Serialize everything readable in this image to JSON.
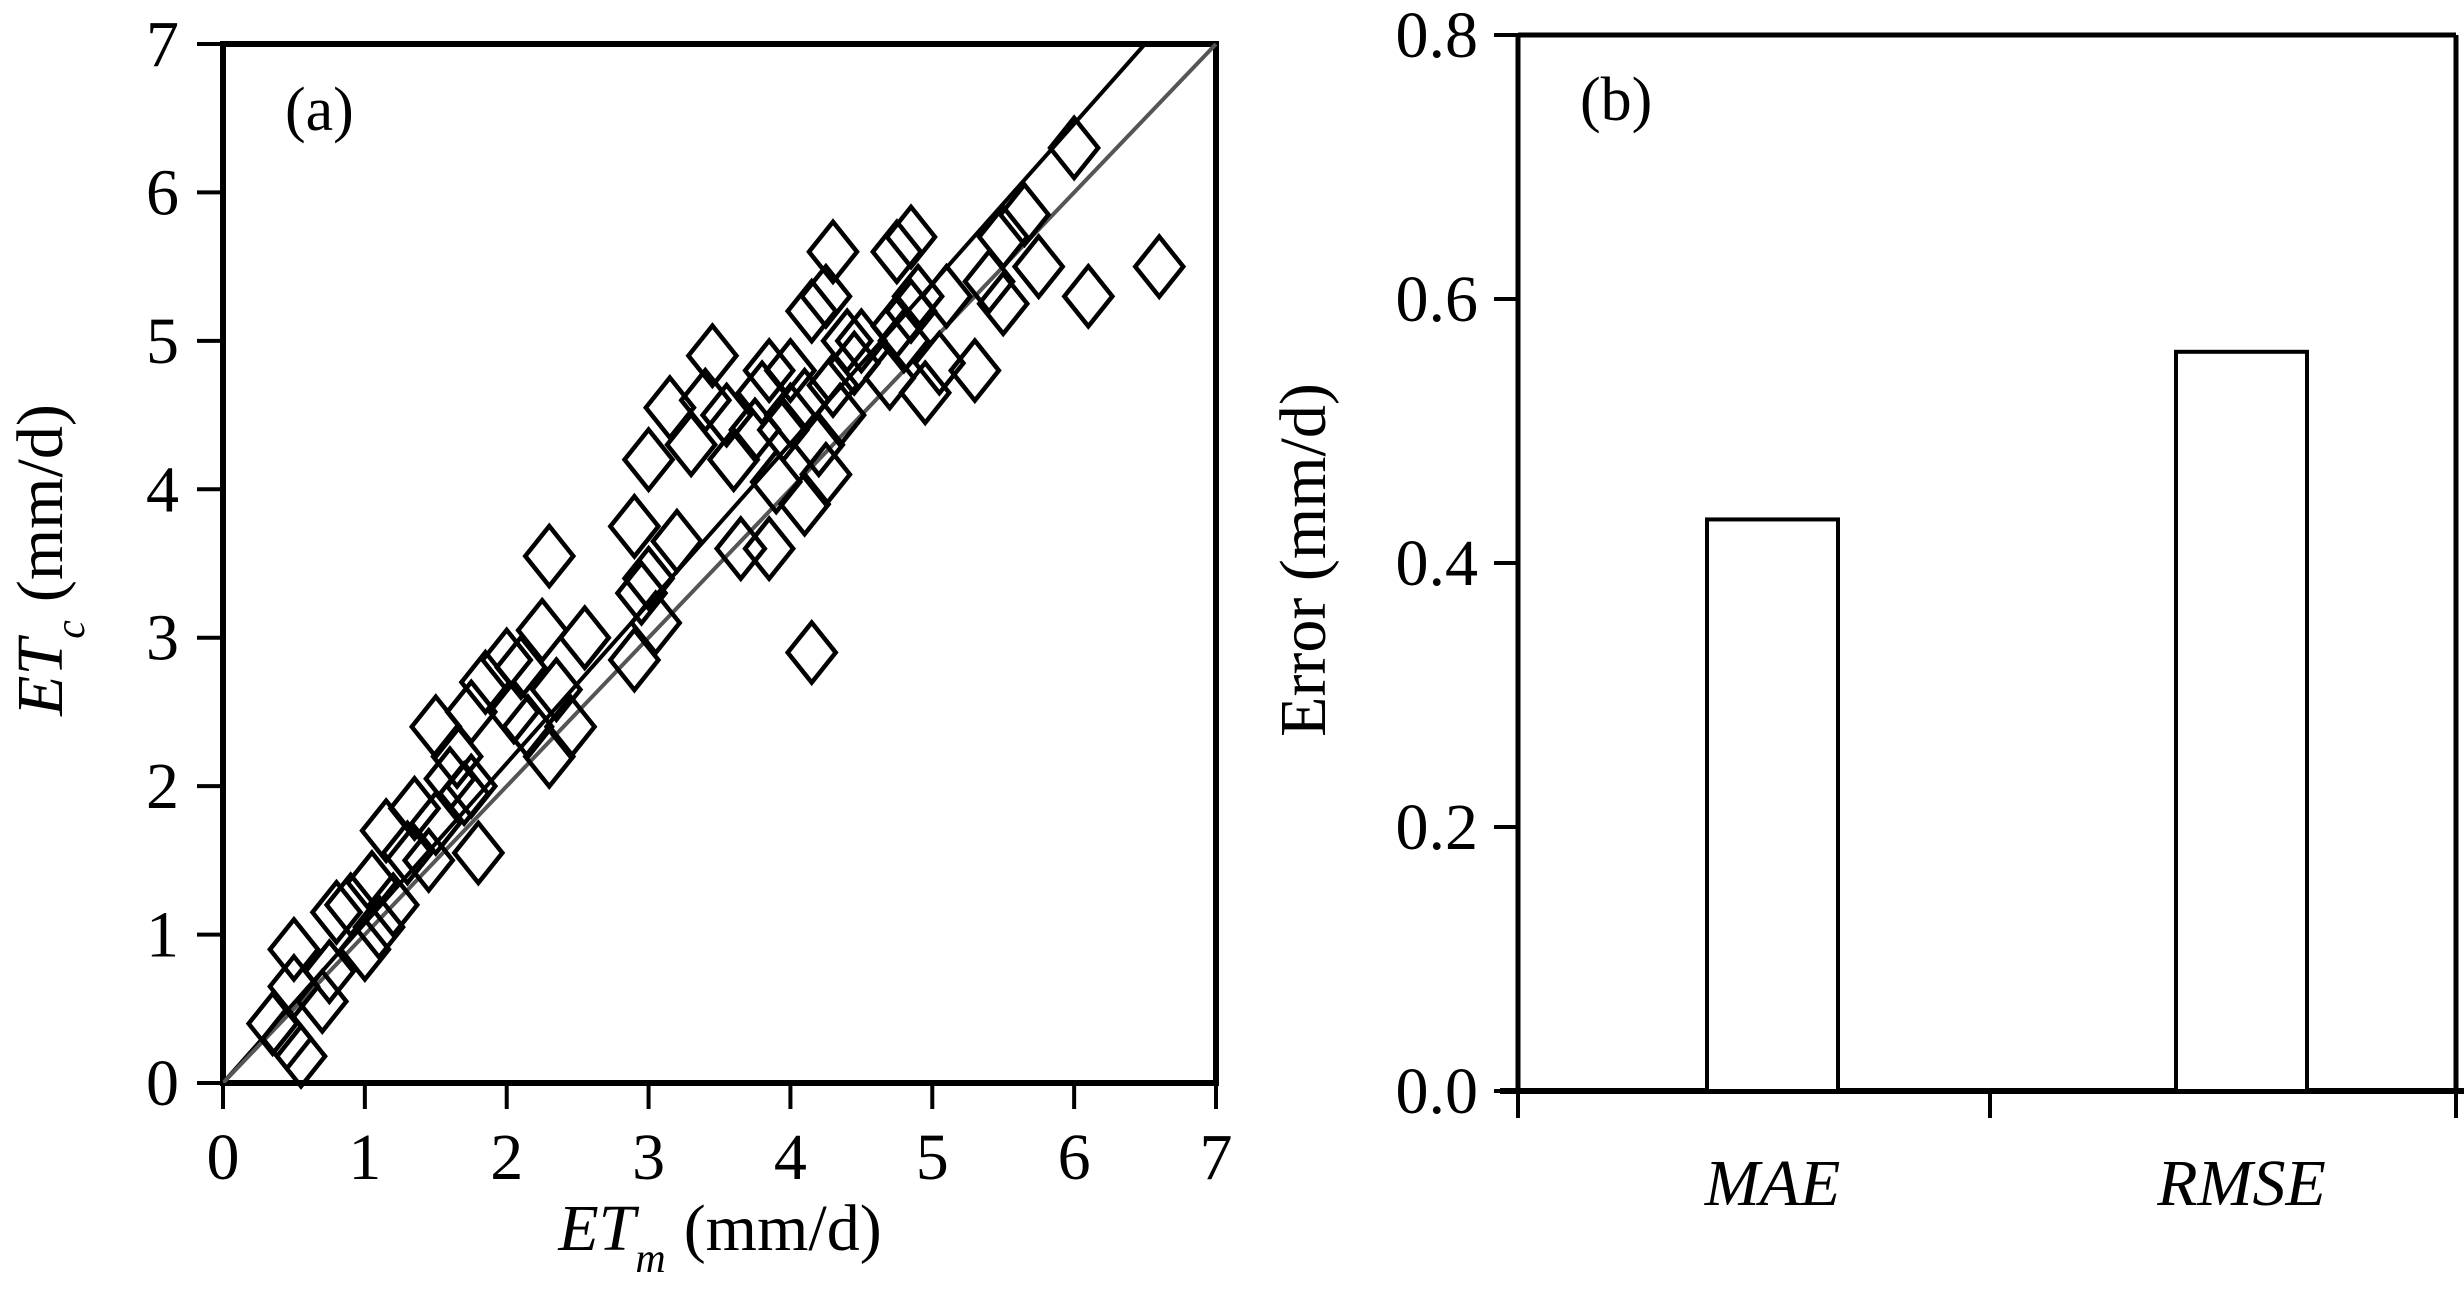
{
  "chart_data": [
    {
      "type": "scatter",
      "panel_label": "(a)",
      "xlabel": {
        "main": "ET",
        "sub": "m",
        "unit": "(mm/d)"
      },
      "ylabel": {
        "main": "ET",
        "sub": "c",
        "unit": "(mm/d)"
      },
      "xlim": [
        0,
        7
      ],
      "ylim": [
        0,
        7
      ],
      "xticks": [
        "0",
        "1",
        "2",
        "3",
        "4",
        "5",
        "6",
        "7"
      ],
      "yticks": [
        "0",
        "1",
        "2",
        "3",
        "4",
        "5",
        "6",
        "7"
      ],
      "grid": false,
      "marker": "open-diamond",
      "lines": [
        {
          "name": "regression",
          "color": "#000000",
          "slope": 1.077,
          "intercept": 0
        },
        {
          "name": "1:1 line",
          "color": "#555555",
          "slope": 1.0,
          "intercept": 0
        }
      ],
      "points": [
        [
          0.35,
          0.4
        ],
        [
          0.45,
          0.3
        ],
        [
          0.55,
          0.18
        ],
        [
          0.5,
          0.65
        ],
        [
          0.5,
          0.9
        ],
        [
          0.7,
          0.55
        ],
        [
          0.75,
          0.75
        ],
        [
          0.8,
          1.15
        ],
        [
          0.9,
          1.2
        ],
        [
          1.0,
          0.9
        ],
        [
          1.05,
          1.35
        ],
        [
          1.1,
          1.05
        ],
        [
          1.2,
          1.2
        ],
        [
          1.15,
          1.7
        ],
        [
          1.3,
          1.55
        ],
        [
          1.35,
          1.85
        ],
        [
          1.45,
          1.5
        ],
        [
          1.5,
          1.75
        ],
        [
          1.5,
          2.4
        ],
        [
          1.6,
          2.05
        ],
        [
          1.65,
          2.2
        ],
        [
          1.7,
          1.95
        ],
        [
          1.75,
          2.5
        ],
        [
          1.8,
          1.55
        ],
        [
          1.85,
          2.7
        ],
        [
          1.75,
          2.0
        ],
        [
          2.0,
          2.85
        ],
        [
          2.05,
          2.5
        ],
        [
          2.1,
          2.8
        ],
        [
          2.15,
          2.4
        ],
        [
          2.25,
          3.05
        ],
        [
          2.3,
          2.2
        ],
        [
          2.35,
          2.65
        ],
        [
          2.45,
          2.4
        ],
        [
          2.55,
          3.0
        ],
        [
          2.3,
          3.55
        ],
        [
          2.9,
          3.75
        ],
        [
          2.9,
          2.85
        ],
        [
          2.95,
          3.3
        ],
        [
          3.0,
          3.4
        ],
        [
          3.05,
          3.1
        ],
        [
          3.0,
          4.2
        ],
        [
          3.15,
          4.55
        ],
        [
          3.2,
          3.65
        ],
        [
          3.3,
          4.3
        ],
        [
          3.4,
          4.6
        ],
        [
          3.45,
          4.9
        ],
        [
          3.55,
          4.5
        ],
        [
          3.6,
          4.2
        ],
        [
          3.65,
          3.6
        ],
        [
          3.75,
          4.4
        ],
        [
          3.8,
          4.65
        ],
        [
          3.85,
          3.6
        ],
        [
          3.85,
          4.8
        ],
        [
          3.9,
          4.05
        ],
        [
          3.95,
          4.4
        ],
        [
          4.0,
          4.8
        ],
        [
          4.0,
          4.5
        ],
        [
          4.1,
          4.6
        ],
        [
          4.1,
          3.9
        ],
        [
          4.15,
          5.2
        ],
        [
          4.15,
          2.9
        ],
        [
          4.2,
          4.3
        ],
        [
          4.25,
          4.1
        ],
        [
          4.25,
          5.3
        ],
        [
          4.3,
          5.6
        ],
        [
          4.3,
          4.7
        ],
        [
          4.35,
          4.5
        ],
        [
          4.4,
          5.0
        ],
        [
          4.45,
          4.85
        ],
        [
          4.5,
          5.0
        ],
        [
          4.7,
          4.75
        ],
        [
          4.75,
          5.6
        ],
        [
          4.75,
          5.1
        ],
        [
          4.8,
          5.0
        ],
        [
          4.85,
          5.7
        ],
        [
          4.85,
          5.2
        ],
        [
          4.9,
          5.3
        ],
        [
          4.95,
          4.65
        ],
        [
          5.05,
          4.85
        ],
        [
          5.1,
          5.3
        ],
        [
          5.3,
          4.8
        ],
        [
          5.4,
          5.4
        ],
        [
          5.5,
          5.25
        ],
        [
          5.5,
          5.7
        ],
        [
          5.65,
          5.85
        ],
        [
          5.75,
          5.5
        ],
        [
          6.0,
          6.3
        ],
        [
          6.1,
          5.3
        ],
        [
          6.6,
          5.5
        ]
      ]
    },
    {
      "type": "bar",
      "panel_label": "(b)",
      "categories": [
        "MAE",
        "RMSE"
      ],
      "values": [
        0.433,
        0.56
      ],
      "ylabel": "Error (mm/d)",
      "xlabel": "",
      "ylim": [
        0,
        0.8
      ],
      "yticks": [
        "0.0",
        "0.2",
        "0.4",
        "0.6",
        "0.8"
      ],
      "bar_fill": "#ffffff",
      "bar_stroke": "#000000",
      "grid": false
    }
  ]
}
